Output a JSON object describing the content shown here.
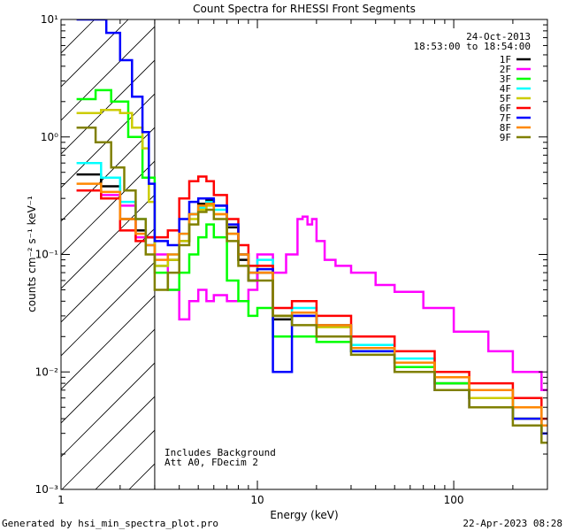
{
  "chart_data": {
    "type": "line",
    "title": "Count Spectra for RHESSI Front Segments",
    "xlabel": "Energy (keV)",
    "ylabel": "counts cm⁻² s⁻¹ keV⁻¹",
    "xscale": "log",
    "yscale": "log",
    "xlim": [
      1,
      300
    ],
    "ylim": [
      0.001,
      10
    ],
    "x_ticks": [
      {
        "value": 1,
        "label": "1"
      },
      {
        "value": 10,
        "label": "10"
      },
      {
        "value": 100,
        "label": "100"
      }
    ],
    "y_ticks": [
      {
        "value": 0.001,
        "label": "10⁻³"
      },
      {
        "value": 0.01,
        "label": "10⁻²"
      },
      {
        "value": 0.1,
        "label": "10⁻¹"
      },
      {
        "value": 1,
        "label": "10⁰"
      },
      {
        "value": 10,
        "label": "10¹"
      }
    ],
    "date": "24-Oct-2013",
    "time_range": "18:53:00 to 18:54:00",
    "shaded_region_max_kev": 3,
    "annotations": [
      "Includes Background",
      "Att A0, FDecim 2"
    ],
    "series": [
      {
        "name": "1F",
        "color": "#000000",
        "x": [
          1.2,
          1.6,
          2.0,
          2.4,
          2.7,
          3.0,
          3.5,
          4.0,
          4.5,
          5.0,
          5.5,
          6.0,
          7.0,
          8.0,
          9.0,
          10,
          12,
          15,
          20,
          30,
          50,
          80,
          120,
          200,
          280
        ],
        "y": [
          0.48,
          0.38,
          0.2,
          0.16,
          0.14,
          0.08,
          0.09,
          0.13,
          0.22,
          0.27,
          0.29,
          0.26,
          0.17,
          0.09,
          0.06,
          0.07,
          0.028,
          0.03,
          0.024,
          0.016,
          0.012,
          0.008,
          0.006,
          0.004,
          0.003
        ]
      },
      {
        "name": "2F",
        "color": "#ff00ff",
        "x": [
          1.2,
          1.6,
          2.0,
          2.4,
          2.7,
          3.0,
          3.5,
          4.0,
          4.5,
          5.0,
          5.5,
          6.0,
          7.0,
          8.0,
          9.0,
          10,
          12,
          14,
          16,
          17,
          18,
          19,
          20,
          22,
          25,
          30,
          40,
          50,
          70,
          100,
          150,
          200,
          280
        ],
        "y": [
          0.35,
          0.32,
          0.26,
          0.14,
          0.12,
          0.1,
          0.05,
          0.028,
          0.04,
          0.05,
          0.04,
          0.045,
          0.04,
          0.04,
          0.05,
          0.1,
          0.07,
          0.1,
          0.2,
          0.21,
          0.18,
          0.2,
          0.13,
          0.09,
          0.08,
          0.07,
          0.055,
          0.048,
          0.035,
          0.022,
          0.015,
          0.01,
          0.007
        ]
      },
      {
        "name": "3F",
        "color": "#00ff00",
        "x": [
          1.2,
          1.5,
          1.8,
          2.2,
          2.6,
          3.0,
          3.5,
          4.0,
          4.5,
          5.0,
          5.5,
          6.0,
          7.0,
          8.0,
          9.0,
          10,
          12,
          15,
          20,
          30,
          50,
          80,
          120,
          200,
          280
        ],
        "y": [
          2.1,
          2.5,
          2.0,
          1.0,
          0.45,
          0.07,
          0.05,
          0.07,
          0.1,
          0.14,
          0.18,
          0.14,
          0.06,
          0.04,
          0.03,
          0.035,
          0.02,
          0.02,
          0.018,
          0.015,
          0.011,
          0.008,
          0.006,
          0.004,
          0.003
        ]
      },
      {
        "name": "4F",
        "color": "#00ffff",
        "x": [
          1.2,
          1.6,
          2.0,
          2.4,
          2.7,
          3.0,
          3.5,
          4.0,
          4.5,
          5.0,
          5.5,
          6.0,
          7.0,
          8.0,
          9.0,
          10,
          12,
          15,
          20,
          30,
          50,
          80,
          120,
          200,
          280
        ],
        "y": [
          0.6,
          0.45,
          0.28,
          0.2,
          0.12,
          0.08,
          0.1,
          0.15,
          0.22,
          0.25,
          0.28,
          0.24,
          0.15,
          0.1,
          0.08,
          0.09,
          0.03,
          0.035,
          0.025,
          0.017,
          0.013,
          0.009,
          0.007,
          0.005,
          0.004
        ]
      },
      {
        "name": "5F",
        "color": "#cccc00",
        "x": [
          1.2,
          1.6,
          2.0,
          2.3,
          2.6,
          2.8,
          3.0,
          3.5,
          4.0,
          4.5,
          5.0,
          5.5,
          6.0,
          7.0,
          8.0,
          9.0,
          10,
          12,
          15,
          20,
          30,
          50,
          80,
          120,
          200,
          280
        ],
        "y": [
          1.6,
          1.7,
          1.6,
          1.2,
          0.8,
          0.28,
          0.08,
          0.09,
          0.13,
          0.2,
          0.24,
          0.26,
          0.22,
          0.15,
          0.1,
          0.07,
          0.08,
          0.03,
          0.03,
          0.024,
          0.016,
          0.012,
          0.009,
          0.006,
          0.004,
          0.003
        ]
      },
      {
        "name": "6F",
        "color": "#ff0000",
        "x": [
          1.2,
          1.6,
          2.0,
          2.4,
          2.7,
          3.0,
          3.5,
          4.0,
          4.5,
          5.0,
          5.5,
          6.0,
          7.0,
          8.0,
          9.0,
          10,
          12,
          15,
          20,
          30,
          50,
          80,
          120,
          200,
          280
        ],
        "y": [
          0.35,
          0.3,
          0.16,
          0.13,
          0.14,
          0.14,
          0.16,
          0.3,
          0.42,
          0.46,
          0.42,
          0.32,
          0.2,
          0.12,
          0.08,
          0.08,
          0.035,
          0.04,
          0.03,
          0.02,
          0.015,
          0.01,
          0.008,
          0.006,
          0.004
        ]
      },
      {
        "name": "7F",
        "color": "#0000ff",
        "x": [
          1.2,
          1.4,
          1.7,
          2.0,
          2.3,
          2.6,
          2.8,
          3.0,
          3.5,
          4.0,
          4.5,
          5.0,
          5.5,
          6.0,
          7.0,
          8.0,
          9.0,
          10,
          12,
          15,
          20,
          30,
          50,
          80,
          120,
          200,
          280
        ],
        "y": [
          10,
          10,
          7.7,
          4.5,
          2.2,
          1.1,
          0.4,
          0.13,
          0.12,
          0.2,
          0.28,
          0.3,
          0.3,
          0.26,
          0.18,
          0.1,
          0.07,
          0.075,
          0.01,
          0.03,
          0.025,
          0.015,
          0.01,
          0.007,
          0.005,
          0.004,
          0.003
        ]
      },
      {
        "name": "8F",
        "color": "#ff8800",
        "x": [
          1.2,
          1.6,
          2.0,
          2.4,
          2.7,
          3.0,
          3.5,
          4.0,
          4.5,
          5.0,
          5.5,
          6.0,
          7.0,
          8.0,
          9.0,
          10,
          12,
          15,
          20,
          30,
          50,
          80,
          120,
          200,
          280
        ],
        "y": [
          0.4,
          0.34,
          0.2,
          0.15,
          0.12,
          0.09,
          0.1,
          0.15,
          0.22,
          0.26,
          0.27,
          0.22,
          0.15,
          0.1,
          0.07,
          0.07,
          0.03,
          0.032,
          0.025,
          0.016,
          0.012,
          0.009,
          0.007,
          0.005,
          0.0035
        ]
      },
      {
        "name": "9F",
        "color": "#808000",
        "x": [
          1.2,
          1.5,
          1.8,
          2.1,
          2.4,
          2.7,
          3.0,
          3.5,
          4.0,
          4.5,
          5.0,
          5.5,
          6.0,
          7.0,
          8.0,
          9.0,
          10,
          12,
          15,
          20,
          30,
          50,
          80,
          120,
          200,
          280
        ],
        "y": [
          1.2,
          0.9,
          0.55,
          0.35,
          0.2,
          0.1,
          0.05,
          0.07,
          0.12,
          0.18,
          0.23,
          0.24,
          0.2,
          0.13,
          0.08,
          0.06,
          0.06,
          0.03,
          0.025,
          0.02,
          0.014,
          0.01,
          0.007,
          0.005,
          0.0035,
          0.0025
        ]
      }
    ]
  },
  "footer": {
    "left": "Generated by hsi_min_spectra_plot.pro",
    "right": "22-Apr-2023 08:28"
  }
}
